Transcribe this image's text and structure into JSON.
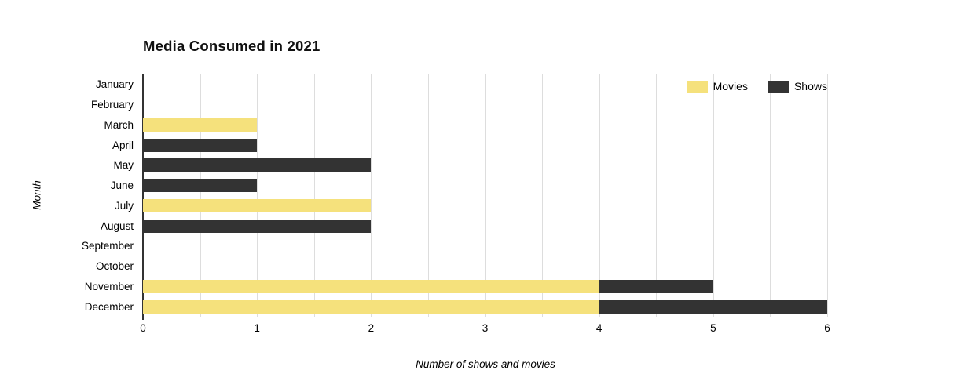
{
  "chart_data": {
    "type": "bar",
    "orientation": "horizontal",
    "stacked": true,
    "title": "Media Consumed in 2021",
    "xlabel": "Number of shows and movies",
    "ylabel": "Month",
    "categories": [
      "January",
      "February",
      "March",
      "April",
      "May",
      "June",
      "July",
      "August",
      "September",
      "October",
      "November",
      "December"
    ],
    "series": [
      {
        "name": "Movies",
        "color": "#F5E17C",
        "values": [
          0,
          0,
          1,
          0,
          0,
          0,
          2,
          0,
          0,
          0,
          4,
          4
        ]
      },
      {
        "name": "Shows",
        "color": "#333333",
        "values": [
          0,
          0,
          0,
          1,
          2,
          1,
          0,
          2,
          0,
          0,
          1,
          2
        ]
      }
    ],
    "xlim": [
      0,
      6
    ],
    "xticks": [
      0,
      1,
      2,
      3,
      4,
      5,
      6
    ],
    "gridline_step": 0.5,
    "grid": true,
    "legend_position": "top-right",
    "colors": {
      "gridline": "#DDDDDD",
      "axis": "#333333",
      "text": "#000000"
    }
  }
}
